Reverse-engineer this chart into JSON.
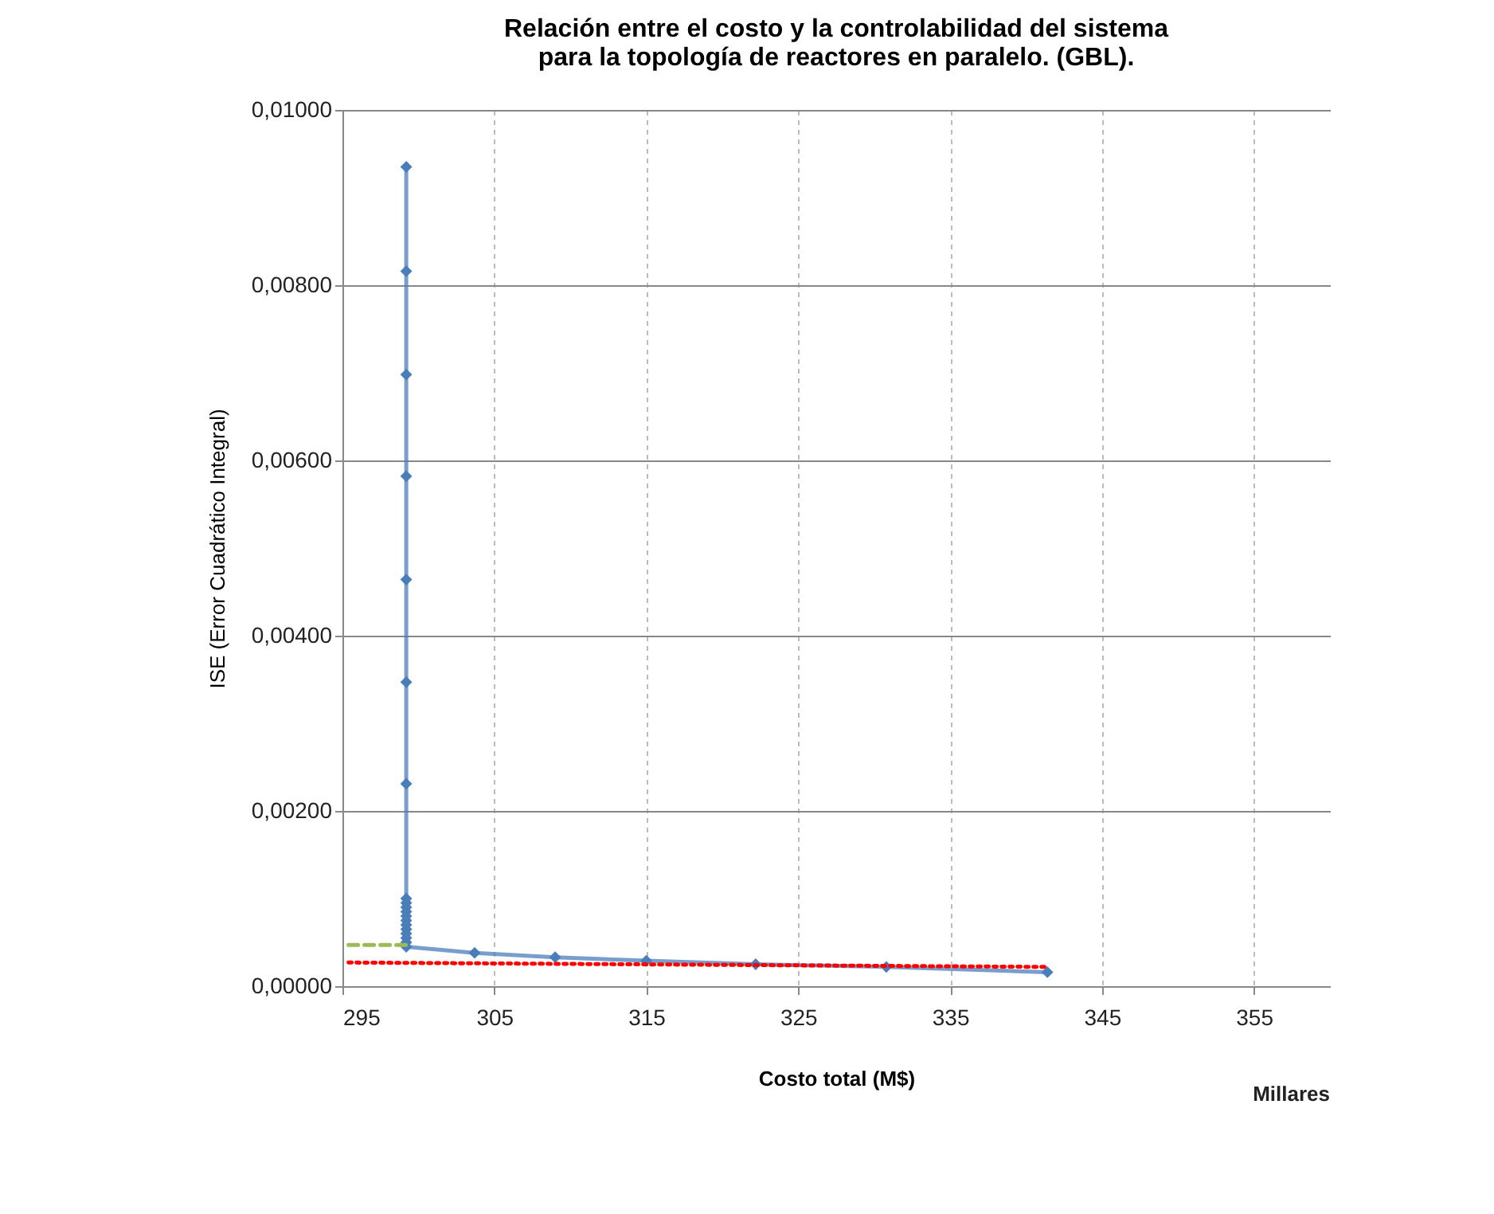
{
  "chart_data": {
    "type": "line",
    "title": "Relación entre el costo y la controlabilidad del sistema para la topología de reactores en paralelo. (GBL).",
    "xlabel": "Costo total (M$)",
    "ylabel": "ISE (Error Cuadrático Integral)",
    "annotations": [
      "Millares"
    ],
    "xlim": [
      295,
      360
    ],
    "xticks": [
      295,
      305,
      315,
      325,
      335,
      345,
      355
    ],
    "ylim": [
      0,
      0.01
    ],
    "yticks": [
      {
        "value": 0,
        "label": "0,00000"
      },
      {
        "value": 0.002,
        "label": "0,00200"
      },
      {
        "value": 0.004,
        "label": "0,00400"
      },
      {
        "value": 0.006,
        "label": "0,00600"
      },
      {
        "value": 0.008,
        "label": "0,00800"
      },
      {
        "value": 0.01,
        "label": "0,01000"
      }
    ],
    "grid": true,
    "marker": "diamond",
    "line_style": "solid",
    "series": [
      {
        "color": "#4a7ebb",
        "x": [
          299.2,
          299.2,
          299.2,
          299.2,
          299.2,
          299.2,
          299.2,
          299.2,
          299.2,
          299.2,
          299.2,
          299.2,
          299.2,
          299.2,
          299.2,
          299.2,
          299.2,
          299.2,
          299.2,
          303.7,
          309.0,
          315.0,
          322.2,
          330.8,
          341.4
        ],
        "values": [
          0.00935,
          0.00816,
          0.00698,
          0.00582,
          0.00464,
          0.00347,
          0.00231,
          0.001,
          0.00095,
          0.0009,
          0.00085,
          0.0008,
          0.00075,
          0.0007,
          0.00065,
          0.0006,
          0.00055,
          0.0005,
          0.00045,
          0.00038,
          0.00033,
          0.00029,
          0.00025,
          0.00022,
          0.00016
        ]
      },
      {
        "type": "line",
        "color": "#9bbb59",
        "line_style": "dashed",
        "marker": "none",
        "x": [
          295.4,
          299.2
        ],
        "values": [
          0.00047,
          0.00047
        ]
      },
      {
        "type": "line",
        "color": "#ff0000",
        "line_style": "dotted",
        "marker": "none",
        "x": [
          295.4,
          341.4
        ],
        "values": [
          0.00027,
          0.00022
        ]
      }
    ]
  }
}
